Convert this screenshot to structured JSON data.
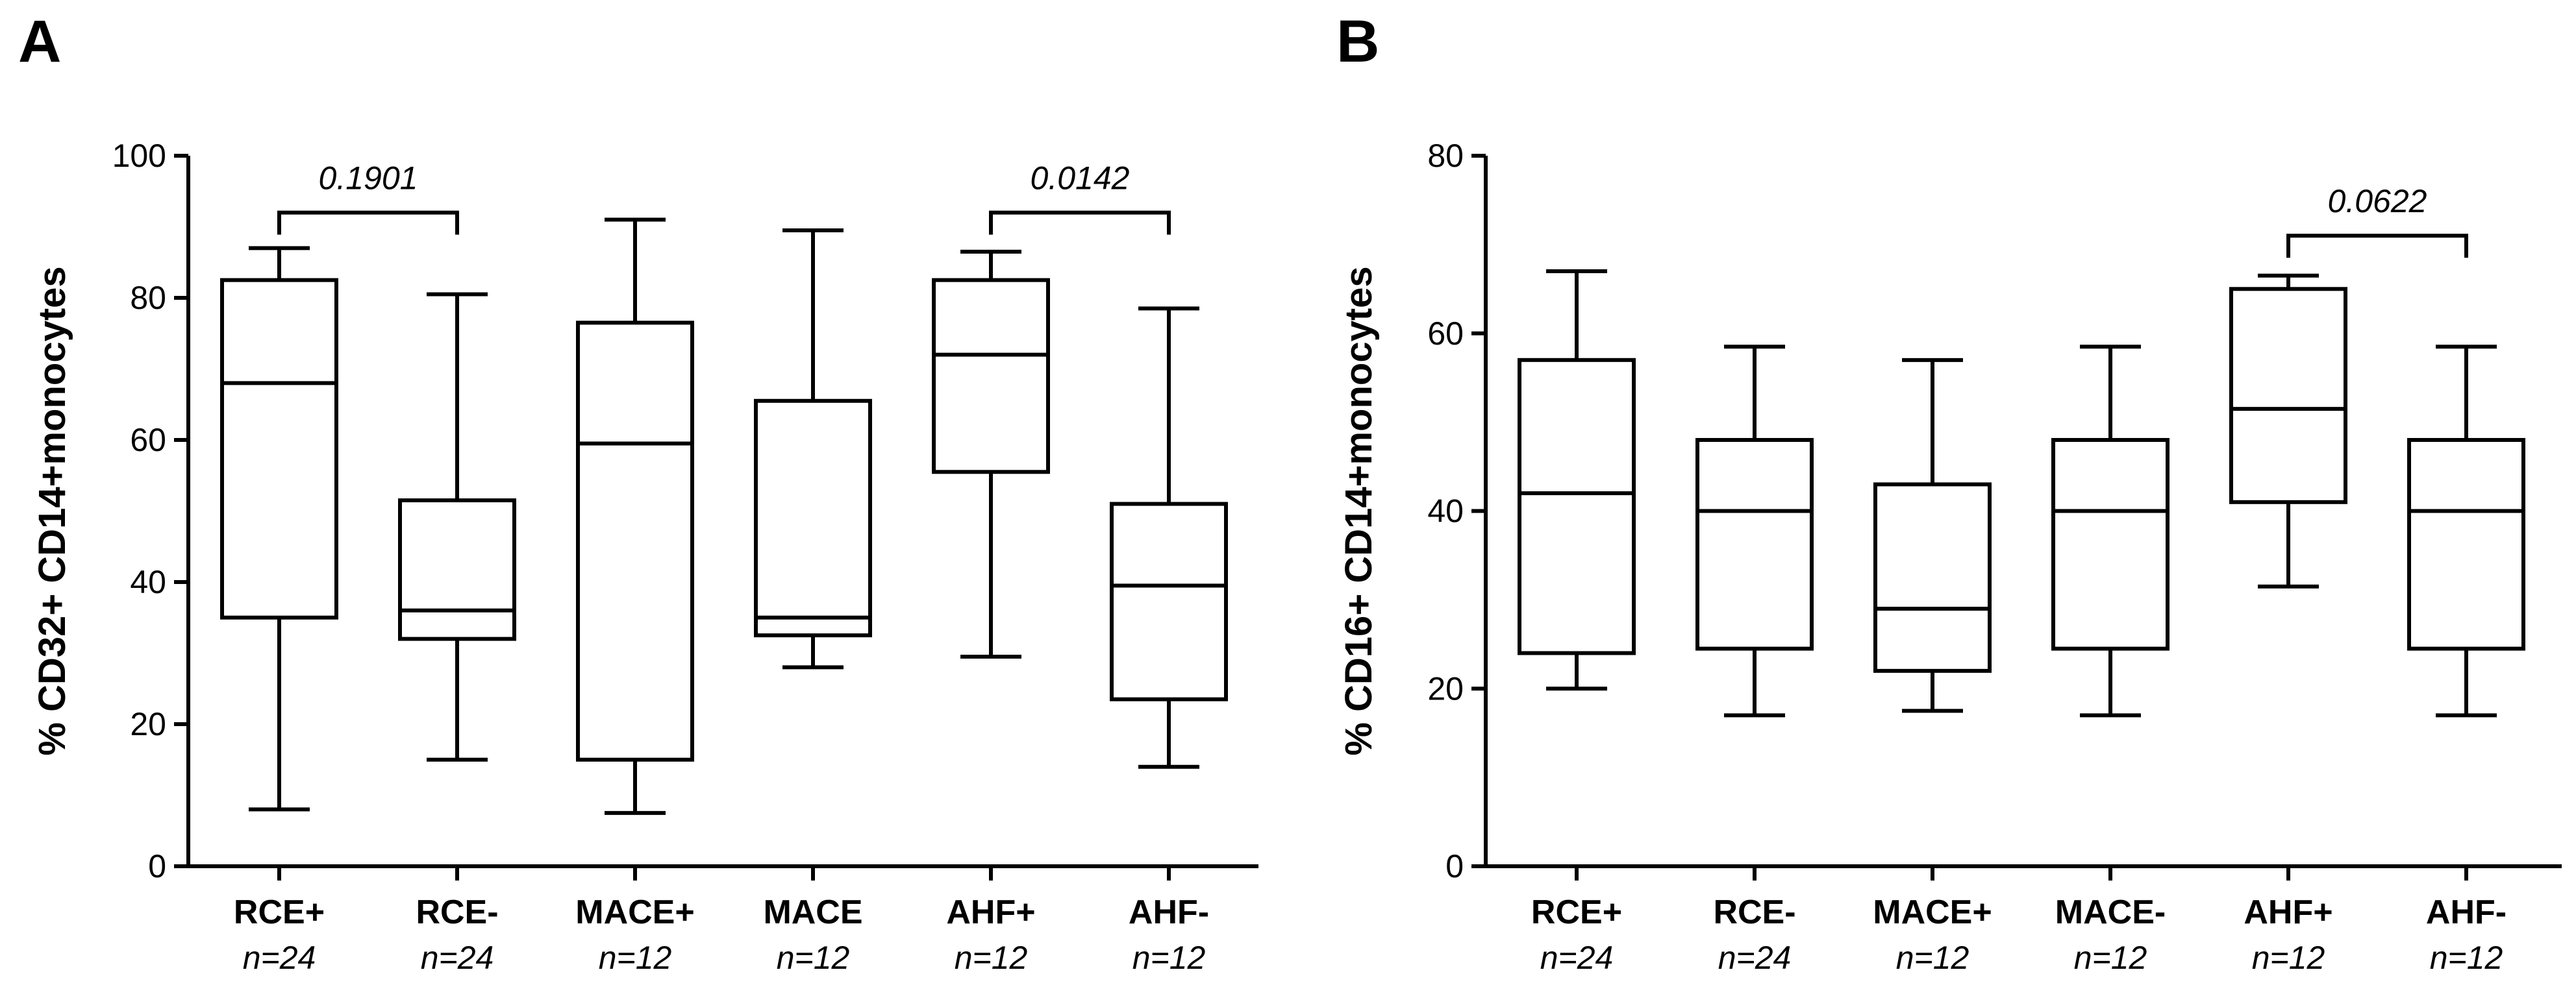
{
  "chart_data": [
    {
      "type": "box",
      "panel_label": "A",
      "ylabel": "% CD32+  CD14+monocytes",
      "ylim": [
        0,
        100
      ],
      "yticks": [
        0,
        20,
        40,
        60,
        80,
        100
      ],
      "categories": [
        "RCE+",
        "RCE-",
        "MACE+",
        "MACE",
        "AHF+",
        "AHF-"
      ],
      "n_labels": [
        "n=24",
        "n=24",
        "n=12",
        "n=12",
        "n=12",
        "n=12"
      ],
      "boxes": [
        {
          "min": 8,
          "q1": 35,
          "median": 68,
          "q3": 82.5,
          "max": 87
        },
        {
          "min": 15,
          "q1": 32,
          "median": 36,
          "q3": 51.5,
          "max": 80.5
        },
        {
          "min": 7.5,
          "q1": 15,
          "median": 59.5,
          "q3": 76.5,
          "max": 91
        },
        {
          "min": 28,
          "q1": 32.5,
          "median": 35,
          "q3": 65.5,
          "max": 89.5
        },
        {
          "min": 29.5,
          "q1": 55.5,
          "median": 72,
          "q3": 82.5,
          "max": 86.5
        },
        {
          "min": 14,
          "q1": 23.5,
          "median": 39.5,
          "q3": 51,
          "max": 78.5
        }
      ],
      "comparisons": [
        {
          "from": 0,
          "to": 1,
          "y": 92,
          "label": "0.1901"
        },
        {
          "from": 4,
          "to": 5,
          "y": 92,
          "label": "0.0142"
        }
      ]
    },
    {
      "type": "box",
      "panel_label": "B",
      "ylabel": "% CD16+  CD14+monocytes",
      "ylim": [
        0,
        80
      ],
      "yticks": [
        0,
        20,
        40,
        60,
        80
      ],
      "categories": [
        "RCE+",
        "RCE-",
        "MACE+",
        "MACE-",
        "AHF+",
        "AHF-"
      ],
      "n_labels": [
        "n=24",
        "n=24",
        "n=12",
        "n=12",
        "n=12",
        "n=12"
      ],
      "boxes": [
        {
          "min": 20,
          "q1": 24,
          "median": 42,
          "q3": 57,
          "max": 67
        },
        {
          "min": 17,
          "q1": 24.5,
          "median": 40,
          "q3": 48,
          "max": 58.5
        },
        {
          "min": 17.5,
          "q1": 22,
          "median": 29,
          "q3": 43,
          "max": 57
        },
        {
          "min": 17,
          "q1": 24.5,
          "median": 40,
          "q3": 48,
          "max": 58.5
        },
        {
          "min": 31.5,
          "q1": 41,
          "median": 51.5,
          "q3": 65,
          "max": 66.5
        },
        {
          "min": 17,
          "q1": 24.5,
          "median": 40,
          "q3": 48,
          "max": 58.5
        }
      ],
      "comparisons": [
        {
          "from": 4,
          "to": 5,
          "y": 71,
          "label": "0.0622"
        }
      ]
    }
  ]
}
